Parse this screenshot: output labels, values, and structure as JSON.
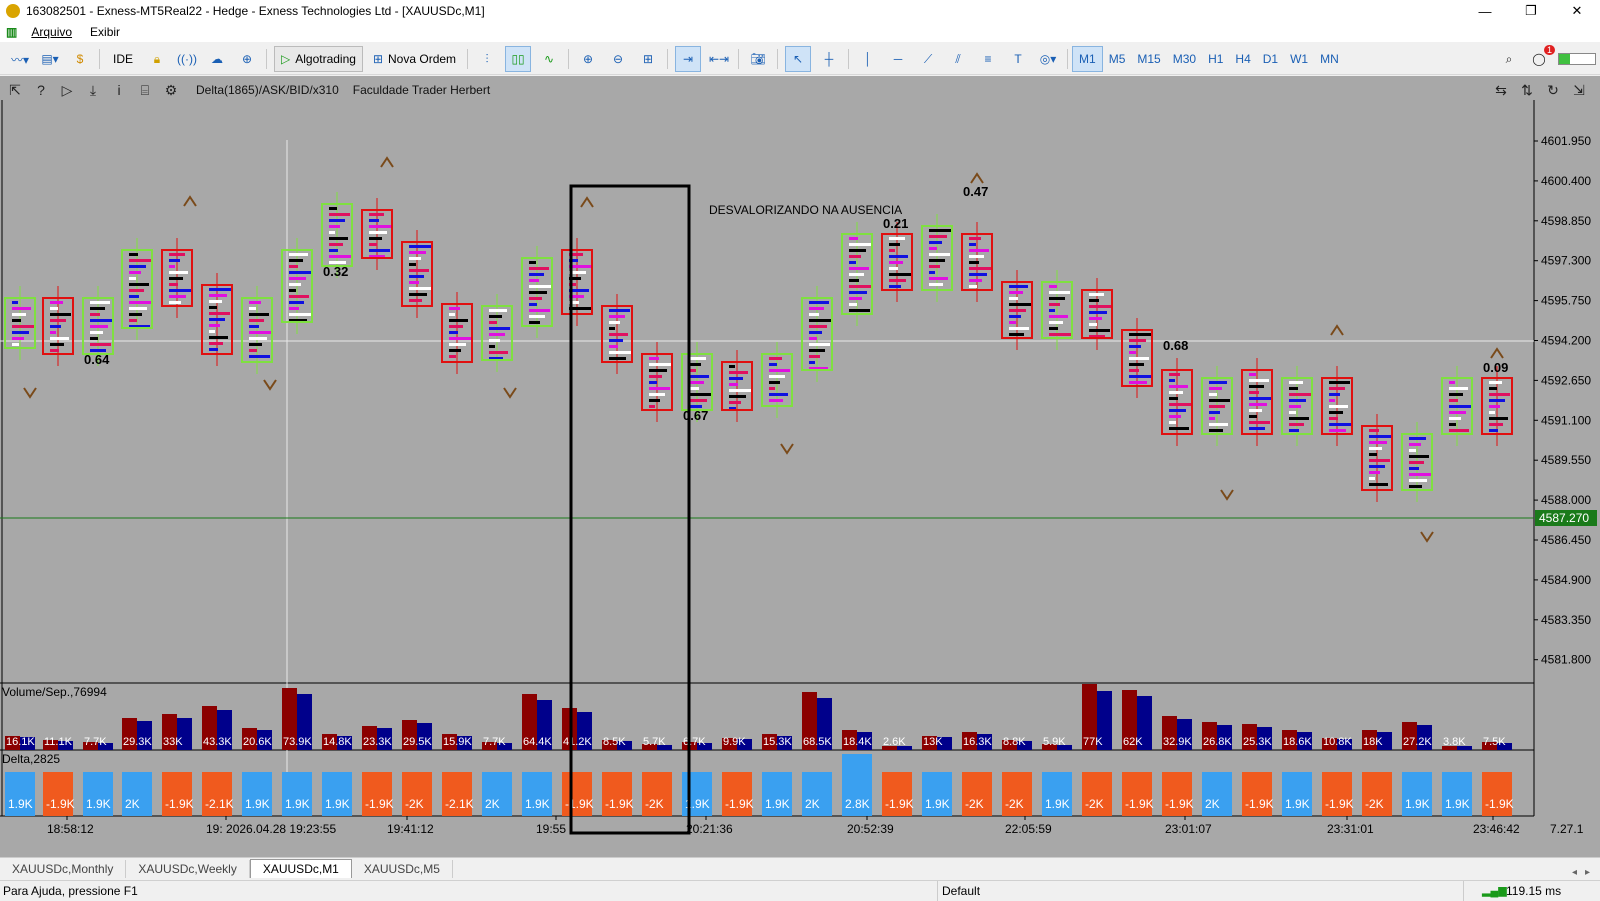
{
  "window": {
    "title": "163082501 - Exness-MT5Real22 - Hedge - Exness Technologies Ltd - [XAUUSDc,M1]",
    "minimize": "—",
    "restore": "❐",
    "close": "✕"
  },
  "menu": {
    "file": "Arquivo",
    "view": "Exibir"
  },
  "toolbar": {
    "ide": "IDE",
    "algotrading": "Algotrading",
    "new_order": "Nova Ordem",
    "timeframes": [
      "M1",
      "M5",
      "M15",
      "M30",
      "H1",
      "H4",
      "D1",
      "W1",
      "MN"
    ],
    "active_timeframe": "M1",
    "notification_count": "1"
  },
  "chart": {
    "indicator_name": "Delta(1865)/ASK/BID/x310",
    "indicator_author": "Faculdade Trader Herbert",
    "annotation": "DESVALORIZANDO NA AUSENCIA",
    "price_levels": [
      "4601.950",
      "4600.400",
      "4598.850",
      "4597.300",
      "4595.750",
      "4594.200",
      "4592.650",
      "4591.100",
      "4589.550",
      "4588.000",
      "4586.450",
      "4584.900",
      "4583.350",
      "4581.800"
    ],
    "current_price": "4587.270",
    "crosshair_price_label": "4594.200",
    "value_labels": [
      "0.64",
      "0.32",
      "0.67",
      "0.21",
      "0.47",
      "0.68",
      "0.09"
    ],
    "time_labels": [
      "18:58:12",
      "19: 2026.04.28 19:23:55",
      "19:41:12",
      "19:55",
      "20:21:36",
      "20:52:39",
      "22:05:59",
      "23:01:07",
      "23:31:01",
      "23:46:42"
    ],
    "scale_label": "7.27.1",
    "volume_panel_title": "Volume/Sep.,76994",
    "delta_panel_title": "Delta,2825",
    "volume_labels": [
      "16.1K",
      "11.1K",
      "7.7K",
      "29.3K",
      "33K",
      "43.3K",
      "20.6K",
      "73.9K",
      "14.8K",
      "23.3K",
      "29.5K",
      "15.9K",
      "7.7K",
      "64.4K",
      "41.2K",
      "8.5K",
      "5.7K",
      "6.7K",
      "9.9K",
      "15.3K",
      "68.5K",
      "18.4K",
      "2.6K",
      "13K",
      "16.3K",
      "8.8K",
      "5.9K",
      "77K",
      "62K",
      "32.9K",
      "26.8K",
      "25.3K",
      "18.6K",
      "10.8K",
      "18K",
      "27.2K",
      "3.8K",
      "7.5K"
    ],
    "delta_labels": [
      "1.9K",
      "-1.9K",
      "1.9K",
      "2K",
      "-1.9K",
      "-2.1K",
      "1.9K",
      "1.9K",
      "1.9K",
      "-1.9K",
      "-2K",
      "-2.1K",
      "2K",
      "1.9K",
      "-1.9K",
      "-1.9K",
      "-2K",
      "1.9K",
      "-1.9K",
      "1.9K",
      "2K",
      "2.8K",
      "-1.9K",
      "1.9K",
      "-2K",
      "-2K",
      "1.9K",
      "-2K",
      "-1.9K",
      "-1.9K",
      "2K",
      "-1.9K",
      "1.9K",
      "-1.9K",
      "-2K",
      "1.9K",
      "1.9K",
      "-1.9K"
    ],
    "colors": {
      "background": "#a8a8a8",
      "bull_box": "#7fe040",
      "bear_box": "#e01010",
      "bull_delta": "#3aa0f0",
      "bear_delta": "#f05a1e",
      "vol_buy": "#00008b",
      "vol_sell": "#8b0000",
      "current_price_bg": "#1a7a1a"
    }
  },
  "tabs": [
    "XAUUSDc,Monthly",
    "XAUUSDc,Weekly",
    "XAUUSDc,M1",
    "XAUUSDc,M5"
  ],
  "active_tab": "XAUUSDc,M1",
  "status": {
    "help": "Para Ajuda, pressione F1",
    "profile": "Default",
    "ping": "119.15 ms"
  }
}
